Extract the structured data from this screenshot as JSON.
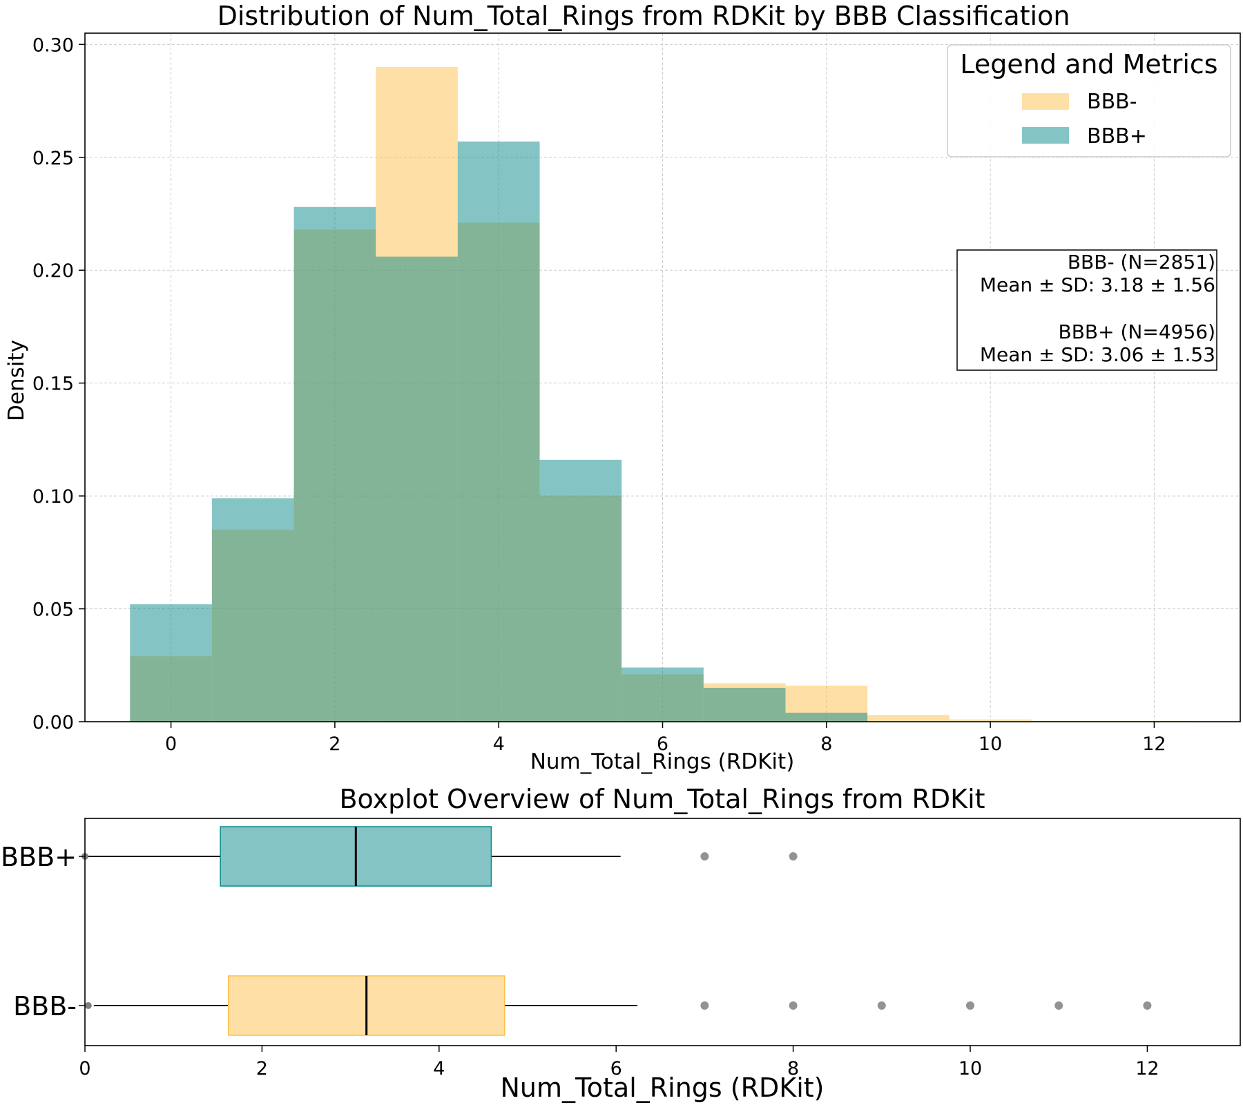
{
  "chart_data": [
    {
      "type": "bar",
      "subtype": "histogram",
      "title": "Distribution of Num_Total_Rings from RDKit by BBB Classification",
      "xlabel": "Num_Total_Rings (RDKit)",
      "ylabel": "Density",
      "xlim": [
        -1.05,
        13.05
      ],
      "ylim": [
        0,
        0.305
      ],
      "xticks": [
        0,
        2,
        4,
        6,
        8,
        10,
        12
      ],
      "yticks": [
        "0.00",
        "0.05",
        "0.10",
        "0.15",
        "0.20",
        "0.25",
        "0.30"
      ],
      "grid": true,
      "bin_centers": [
        0,
        1,
        2,
        3,
        4,
        5,
        6,
        7,
        8,
        9,
        10,
        11,
        12
      ],
      "series": [
        {
          "name": "BBB-",
          "color": "#fdbf4b",
          "values": [
            0.029,
            0.085,
            0.218,
            0.29,
            0.221,
            0.1,
            0.021,
            0.017,
            0.016,
            0.003,
            0.001,
            0.0004,
            0.0004
          ]
        },
        {
          "name": "BBB+",
          "color": "#0a8a8a",
          "values": [
            0.052,
            0.099,
            0.228,
            0.206,
            0.257,
            0.116,
            0.024,
            0.015,
            0.004,
            0,
            0,
            0,
            0
          ]
        }
      ],
      "legend": {
        "title": "Legend and Metrics",
        "position": "top-right",
        "items": [
          "BBB-",
          "BBB+"
        ]
      },
      "metrics": [
        {
          "header": "BBB- (N=2851)",
          "line": "Mean ± SD: 3.18 ± 1.56"
        },
        {
          "header": "BBB+ (N=4956)",
          "line": "Mean ± SD: 3.06 ± 1.53"
        }
      ]
    },
    {
      "type": "boxplot",
      "title": "Boxplot Overview of Num_Total_Rings from RDKit",
      "xlabel": "Num_Total_Rings (RDKit)",
      "xlim": [
        0,
        13.05
      ],
      "xticks": [
        0,
        2,
        4,
        6,
        8,
        10,
        12
      ],
      "groups": [
        {
          "name": "BBB+",
          "color": "#0a8a8a",
          "whisker_low": 0,
          "q1": 1.53,
          "mean": 3.06,
          "q3": 4.59,
          "whisker_high": 6.05,
          "outliers": [
            7,
            8
          ]
        },
        {
          "name": "BBB-",
          "color": "#fdbf4b",
          "whisker_low": 0.1,
          "q1": 1.62,
          "mean": 3.18,
          "q3": 4.74,
          "whisker_high": 6.24,
          "outliers": [
            7,
            8,
            9,
            10,
            11,
            12
          ]
        }
      ]
    }
  ]
}
